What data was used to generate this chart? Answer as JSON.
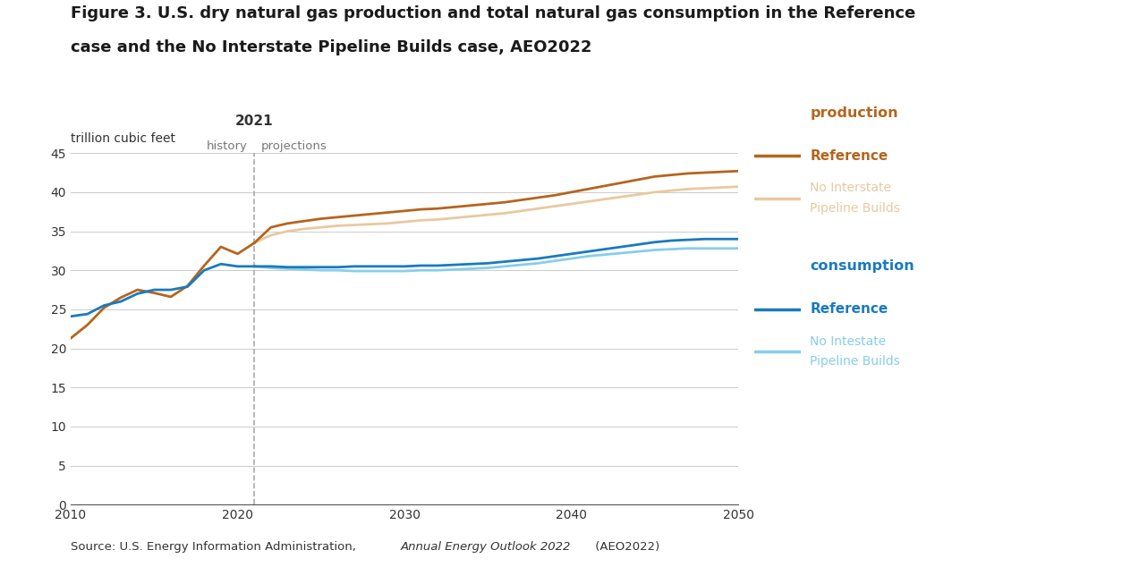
{
  "title_line1": "Figure 3. U.S. dry natural gas production and total natural gas consumption in the Reference",
  "title_line2": "case and the No Interstate Pipeline Builds case, AEO2022",
  "ylabel": "trillion cubic feet",
  "xmin": 2010,
  "xmax": 2050,
  "ymin": 0,
  "ymax": 45,
  "yticks": [
    0,
    5,
    10,
    15,
    20,
    25,
    30,
    35,
    40,
    45
  ],
  "xticks": [
    2010,
    2020,
    2030,
    2040,
    2050
  ],
  "divider_year": 2021,
  "history_label": "history",
  "projections_label": "projections",
  "year_label": "2021",
  "prod_ref_color": "#b5651d",
  "prod_nip_color": "#e8c9a0",
  "cons_ref_color": "#1a7abf",
  "cons_nip_color": "#87ceeb",
  "legend_prod_label": "production",
  "legend_prod_ref": "Reference",
  "legend_prod_nip1": "No Interstate",
  "legend_prod_nip2": "Pipeline Builds",
  "legend_cons_label": "consumption",
  "legend_cons_ref": "Reference",
  "legend_cons_nip1": "No Intestate",
  "legend_cons_nip2": "Pipeline Builds",
  "prod_ref_history_years": [
    2010,
    2011,
    2012,
    2013,
    2014,
    2015,
    2016,
    2017,
    2018,
    2019,
    2020,
    2021
  ],
  "prod_ref_history_vals": [
    21.3,
    23.0,
    25.2,
    26.5,
    27.5,
    27.1,
    26.6,
    28.0,
    30.6,
    33.0,
    32.1,
    33.5
  ],
  "prod_ref_proj_years": [
    2021,
    2022,
    2023,
    2024,
    2025,
    2026,
    2027,
    2028,
    2029,
    2030,
    2031,
    2032,
    2033,
    2034,
    2035,
    2036,
    2037,
    2038,
    2039,
    2040,
    2041,
    2042,
    2043,
    2044,
    2045,
    2046,
    2047,
    2048,
    2049,
    2050
  ],
  "prod_ref_proj_vals": [
    33.5,
    35.5,
    36.0,
    36.3,
    36.6,
    36.8,
    37.0,
    37.2,
    37.4,
    37.6,
    37.8,
    37.9,
    38.1,
    38.3,
    38.5,
    38.7,
    39.0,
    39.3,
    39.6,
    40.0,
    40.4,
    40.8,
    41.2,
    41.6,
    42.0,
    42.2,
    42.4,
    42.5,
    42.6,
    42.7
  ],
  "prod_nip_proj_years": [
    2021,
    2022,
    2023,
    2024,
    2025,
    2026,
    2027,
    2028,
    2029,
    2030,
    2031,
    2032,
    2033,
    2034,
    2035,
    2036,
    2037,
    2038,
    2039,
    2040,
    2041,
    2042,
    2043,
    2044,
    2045,
    2046,
    2047,
    2048,
    2049,
    2050
  ],
  "prod_nip_proj_vals": [
    33.5,
    34.5,
    35.0,
    35.3,
    35.5,
    35.7,
    35.8,
    35.9,
    36.0,
    36.2,
    36.4,
    36.5,
    36.7,
    36.9,
    37.1,
    37.3,
    37.6,
    37.9,
    38.2,
    38.5,
    38.8,
    39.1,
    39.4,
    39.7,
    40.0,
    40.2,
    40.4,
    40.5,
    40.6,
    40.7
  ],
  "cons_ref_history_years": [
    2010,
    2011,
    2012,
    2013,
    2014,
    2015,
    2016,
    2017,
    2018,
    2019,
    2020,
    2021
  ],
  "cons_ref_history_vals": [
    24.1,
    24.4,
    25.5,
    26.0,
    27.0,
    27.5,
    27.5,
    27.9,
    30.0,
    30.8,
    30.5,
    30.5
  ],
  "cons_ref_proj_years": [
    2021,
    2022,
    2023,
    2024,
    2025,
    2026,
    2027,
    2028,
    2029,
    2030,
    2031,
    2032,
    2033,
    2034,
    2035,
    2036,
    2037,
    2038,
    2039,
    2040,
    2041,
    2042,
    2043,
    2044,
    2045,
    2046,
    2047,
    2048,
    2049,
    2050
  ],
  "cons_ref_proj_vals": [
    30.5,
    30.5,
    30.4,
    30.4,
    30.4,
    30.4,
    30.5,
    30.5,
    30.5,
    30.5,
    30.6,
    30.6,
    30.7,
    30.8,
    30.9,
    31.1,
    31.3,
    31.5,
    31.8,
    32.1,
    32.4,
    32.7,
    33.0,
    33.3,
    33.6,
    33.8,
    33.9,
    34.0,
    34.0,
    34.0
  ],
  "cons_nip_proj_years": [
    2021,
    2022,
    2023,
    2024,
    2025,
    2026,
    2027,
    2028,
    2029,
    2030,
    2031,
    2032,
    2033,
    2034,
    2035,
    2036,
    2037,
    2038,
    2039,
    2040,
    2041,
    2042,
    2043,
    2044,
    2045,
    2046,
    2047,
    2048,
    2049,
    2050
  ],
  "cons_nip_proj_vals": [
    30.5,
    30.3,
    30.2,
    30.1,
    30.0,
    30.0,
    29.9,
    29.9,
    29.9,
    29.9,
    30.0,
    30.0,
    30.1,
    30.2,
    30.3,
    30.5,
    30.7,
    30.9,
    31.2,
    31.5,
    31.8,
    32.0,
    32.2,
    32.4,
    32.6,
    32.7,
    32.8,
    32.8,
    32.8,
    32.8
  ],
  "background_color": "#ffffff",
  "grid_color": "#cccccc",
  "title_fontsize": 13,
  "axis_label_fontsize": 10,
  "tick_fontsize": 10,
  "source_fontsize": 9.5
}
